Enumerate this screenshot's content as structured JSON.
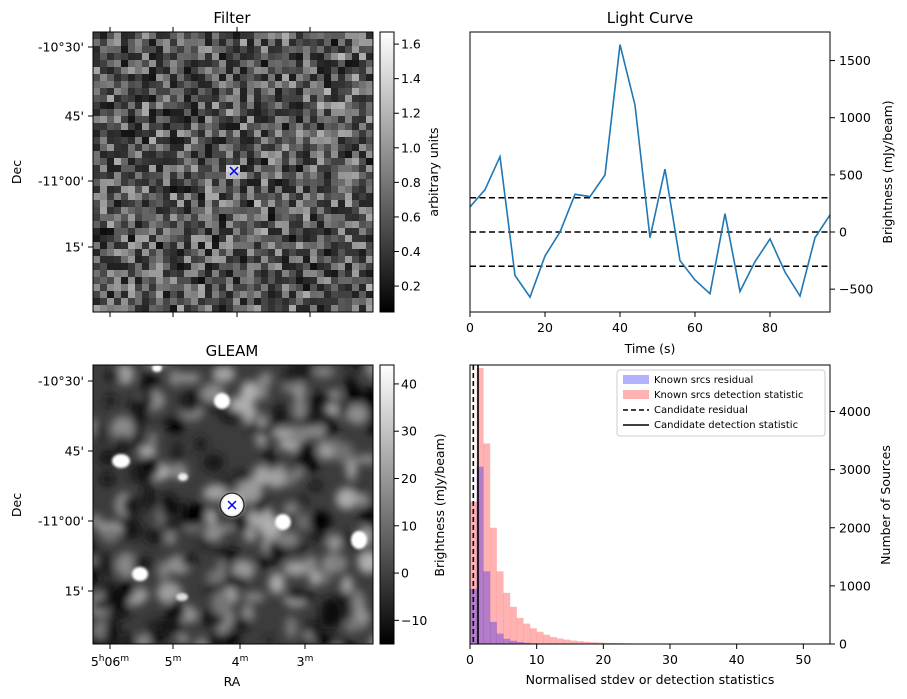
{
  "chart_data": [
    {
      "type": "heatmap",
      "title": "Filter",
      "xlabel": "",
      "ylabel": "Dec",
      "y_ticks": [
        "-10°30'",
        "45'",
        "-11°00'",
        "15'"
      ],
      "colorbar_label": "arbitrary units",
      "colorbar_ticks": [
        "0.2",
        "0.4",
        "0.6",
        "0.8",
        "1.0",
        "1.2",
        "1.4",
        "1.6"
      ],
      "colorbar_range": [
        0.05,
        1.67
      ],
      "colormap": [
        "#000000",
        "#ffffff"
      ],
      "marker": "x",
      "marker_color": "#0000ff"
    },
    {
      "type": "line",
      "title": "Light Curve",
      "xlabel": "Time (s)",
      "ylabel": "Brightness (mJy/beam)",
      "xlim": [
        0,
        96
      ],
      "ylim": [
        -700,
        1750
      ],
      "x_ticks": [
        "0",
        "20",
        "40",
        "60",
        "80"
      ],
      "y_ticks": [
        "-500",
        "0",
        "500",
        "1000",
        "1500"
      ],
      "series": [
        {
          "color": "#1f77b4",
          "x": [
            0,
            4,
            8,
            12,
            16,
            20,
            24,
            28,
            32,
            36,
            40,
            44,
            48,
            52,
            56,
            60,
            64,
            68,
            72,
            76,
            80,
            84,
            88,
            92,
            96
          ],
          "y": [
            220,
            370,
            660,
            -380,
            -570,
            -210,
            0,
            330,
            310,
            500,
            1640,
            1110,
            -50,
            550,
            -250,
            -420,
            -540,
            160,
            -520,
            -260,
            -60,
            -350,
            -560,
            -50,
            150
          ]
        }
      ],
      "hlines": [
        300,
        0,
        -300
      ],
      "hline_style": "dashed"
    },
    {
      "type": "heatmap",
      "title": "GLEAM",
      "xlabel": "RA",
      "ylabel": "Dec",
      "x_ticks": [
        "5h06m",
        "05m",
        "04m",
        "03m"
      ],
      "y_ticks": [
        "-10°30'",
        "45'",
        "-11°00'",
        "15'"
      ],
      "colorbar_label": "",
      "colorbar_ticks": [
        "−10",
        "0",
        "10",
        "20",
        "30",
        "40"
      ],
      "colorbar_range": [
        -15,
        44
      ],
      "colormap": [
        "#000000",
        "#ffffff"
      ],
      "marker": "x",
      "marker_color": "#0000ff"
    },
    {
      "type": "bar",
      "title": "",
      "xlabel": "Normalised stdev or detection statistics",
      "ylabel": "Brightness (mJy/beam)",
      "ylabel_right": "Number of Sources",
      "xlim": [
        0,
        54
      ],
      "ylim": [
        0,
        4800
      ],
      "x_ticks": [
        "0",
        "10",
        "20",
        "30",
        "40",
        "50"
      ],
      "y_ticks": [
        "0",
        "1000",
        "2000",
        "3000",
        "4000"
      ],
      "bin_edges": [
        0,
        1,
        2,
        3,
        4,
        5,
        6,
        7,
        8,
        9,
        10,
        11,
        12,
        13,
        14,
        15,
        16,
        17,
        18,
        19,
        20,
        21,
        22,
        23,
        24,
        25,
        26,
        27,
        28,
        29,
        30,
        31,
        32,
        33,
        34,
        35,
        36,
        37,
        38,
        39,
        40,
        41,
        42,
        43,
        44,
        45,
        46,
        47,
        48,
        49,
        50,
        51,
        52,
        53
      ],
      "series": [
        {
          "name": "Known srcs residual",
          "color": "#0000ff",
          "alpha": 0.3,
          "values": [
            950,
            3050,
            1250,
            380,
            180,
            90,
            55,
            35,
            20,
            12,
            8,
            5,
            3,
            2,
            1,
            1,
            0,
            0,
            0,
            0,
            0,
            0,
            0,
            0,
            0,
            0,
            0,
            0,
            0,
            0,
            0,
            0,
            0,
            0,
            0,
            0,
            0,
            0,
            0,
            0,
            0,
            0,
            0,
            0,
            0,
            0,
            0,
            0,
            0,
            0,
            0,
            0,
            0
          ]
        },
        {
          "name": "Known srcs detection statistic",
          "color": "#ff0000",
          "alpha": 0.3,
          "values": [
            2450,
            4750,
            3450,
            2000,
            1250,
            880,
            640,
            450,
            350,
            270,
            210,
            160,
            120,
            95,
            75,
            60,
            48,
            38,
            30,
            25,
            20,
            17,
            14,
            12,
            10,
            9,
            8,
            7,
            6,
            5,
            5,
            4,
            4,
            3,
            3,
            3,
            2,
            2,
            2,
            2,
            2,
            1,
            1,
            1,
            1,
            1,
            1,
            1,
            1,
            1,
            1,
            1,
            1
          ]
        }
      ],
      "vlines": [
        {
          "name": "Candidate residual",
          "x": 0.5,
          "style": "dashed",
          "color": "#000000"
        },
        {
          "name": "Candidate detection statistic",
          "x": 1.2,
          "style": "solid",
          "color": "#000000"
        }
      ],
      "legend": "top-right"
    }
  ]
}
